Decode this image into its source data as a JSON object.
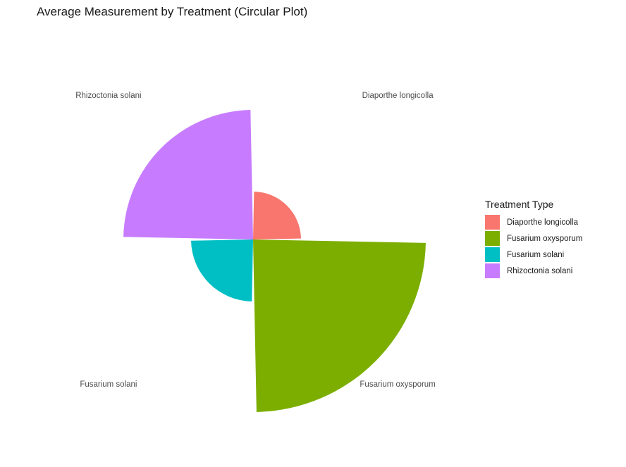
{
  "chart_data": {
    "type": "bar",
    "coordinate_system": "polar",
    "title": "Average Measurement by Treatment (Circular Plot)",
    "categories": [
      "Diaporthe longicolla",
      "Fusarium oxysporum",
      "Fusarium solani",
      "Rhizoctonia solani"
    ],
    "values": [
      68,
      245,
      88,
      184
    ],
    "colors": [
      "#F8766D",
      "#7CAE00",
      "#00BFC4",
      "#C77CFF"
    ],
    "legend": {
      "title": "Treatment Type",
      "position": "right",
      "items": [
        {
          "label": "Diaporthe longicolla",
          "color": "#F8766D"
        },
        {
          "label": "Fusarium oxysporum",
          "color": "#7CAE00"
        },
        {
          "label": "Fusarium solani",
          "color": "#00BFC4"
        },
        {
          "label": "Rhizoctonia solani",
          "color": "#C77CFF"
        }
      ]
    },
    "grid": false,
    "axis_text": [
      "Diaporthe longicolla",
      "Fusarium oxysporum",
      "Fusarium solani",
      "Rhizoctonia solani"
    ]
  }
}
